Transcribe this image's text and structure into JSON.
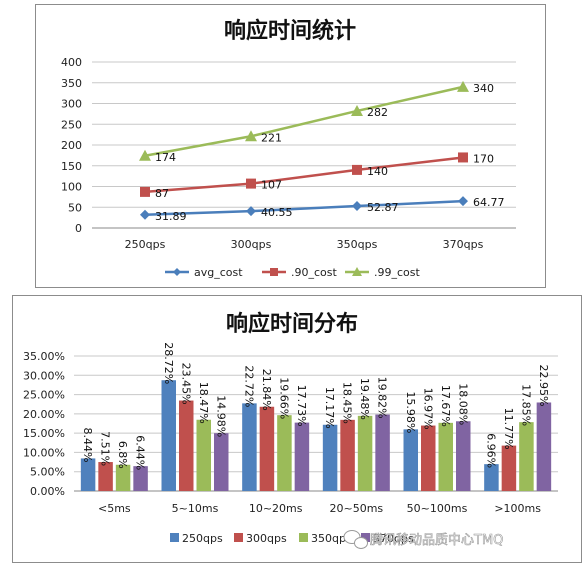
{
  "watermark": "腾讯移动品质中心TMQ",
  "chart_data": [
    {
      "type": "line",
      "title": "响应时间统计",
      "categories": [
        "250qps",
        "300qps",
        "350qps",
        "370qps"
      ],
      "ylim": [
        0,
        400
      ],
      "yticks": [
        "0",
        "50",
        "100",
        "150",
        "200",
        "250",
        "300",
        "350",
        "400"
      ],
      "grid": true,
      "legend_position": "bottom",
      "series": [
        {
          "name": "avg_cost",
          "color": "#4a7ebb",
          "marker": "diamond",
          "values": [
            31.89,
            40.55,
            52.87,
            64.77
          ],
          "labels": [
            "31.89",
            "40.55",
            "52.87",
            "64.77"
          ]
        },
        {
          "name": ".90_cost",
          "color": "#c0504d",
          "marker": "square",
          "values": [
            87,
            107,
            140,
            170
          ],
          "labels": [
            "87",
            "107",
            "140",
            "170"
          ]
        },
        {
          "name": ".99_cost",
          "color": "#9bbb59",
          "marker": "triangle",
          "values": [
            174,
            221,
            282,
            340
          ],
          "labels": [
            "174",
            "221",
            "282",
            "340"
          ]
        }
      ]
    },
    {
      "type": "bar",
      "title": "响应时间分布",
      "categories": [
        "<5ms",
        "5~10ms",
        "10~20ms",
        "20~50ms",
        "50~100ms",
        ">100ms"
      ],
      "ylim": [
        0,
        35
      ],
      "yticks": [
        "0.00%",
        "5.00%",
        "10.00%",
        "15.00%",
        "20.00%",
        "25.00%",
        "30.00%",
        "35.00%"
      ],
      "grid": true,
      "legend_position": "bottom",
      "series": [
        {
          "name": "250qps",
          "color": "#4f81bd",
          "values": [
            8.44,
            28.72,
            22.72,
            17.17,
            15.98,
            6.96
          ],
          "labels": [
            "8.44%",
            "28.72%",
            "22.72%",
            "17.17%",
            "15.98%",
            "6.96%"
          ]
        },
        {
          "name": "300qps",
          "color": "#c0504d",
          "values": [
            7.51,
            23.45,
            21.84,
            18.45,
            16.97,
            11.77
          ],
          "labels": [
            "7.51%",
            "23.45%",
            "21.84%",
            "18.45%",
            "16.97%",
            "11.77%"
          ]
        },
        {
          "name": "350qps",
          "color": "#9bbb59",
          "values": [
            6.8,
            18.47,
            19.66,
            19.48,
            17.67,
            17.85
          ],
          "labels": [
            "6.8%",
            "18.47%",
            "19.66%",
            "19.48%",
            "17.67%",
            "17.85%"
          ]
        },
        {
          "name": "370qps",
          "color": "#8064a2",
          "values": [
            6.44,
            14.98,
            17.73,
            19.82,
            18.08,
            22.95
          ],
          "labels": [
            "6.44%",
            "14.98%",
            "17.73%",
            "19.82%",
            "18.08%",
            "22.95%"
          ]
        }
      ]
    }
  ]
}
